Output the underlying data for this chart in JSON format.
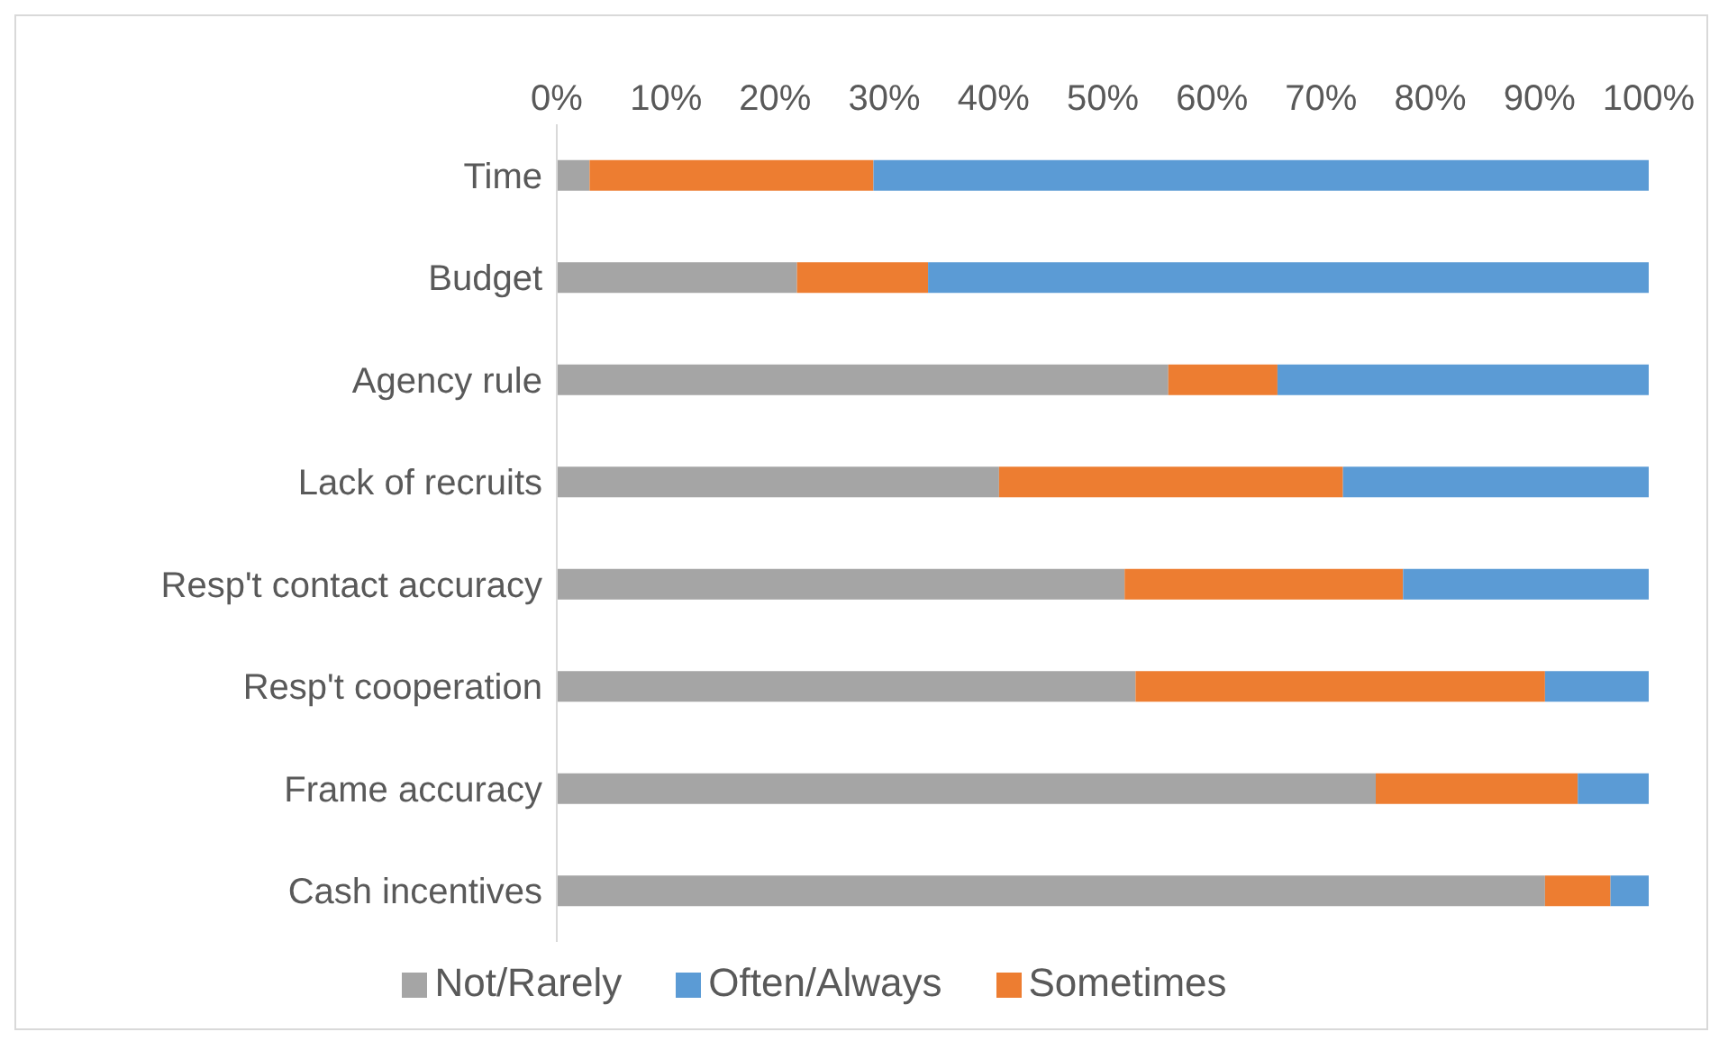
{
  "chart_data": {
    "type": "bar",
    "orientation": "horizontal",
    "stacked": true,
    "categories": [
      "Time",
      "Budget",
      "Agency rule",
      "Lack of recruits",
      "Resp't contact accuracy",
      "Resp't cooperation",
      "Frame accuracy",
      "Cash incentives"
    ],
    "series": [
      {
        "name": "Not/Rarely",
        "color": "#a5a5a5",
        "values": [
          3,
          22,
          56,
          40.5,
          52,
          53,
          75,
          90.5
        ]
      },
      {
        "name": "Sometimes",
        "color": "#ed7d31",
        "values": [
          26,
          12,
          10,
          31.5,
          25.5,
          37.5,
          18.5,
          6
        ]
      },
      {
        "name": "Often/Always",
        "color": "#5b9bd5",
        "values": [
          71,
          66,
          34,
          28,
          22.5,
          9.5,
          6.5,
          3.5
        ]
      }
    ],
    "xlim": [
      0,
      100
    ],
    "xticks": [
      {
        "value": 0,
        "label": "0%"
      },
      {
        "value": 10,
        "label": "10%"
      },
      {
        "value": 20,
        "label": "20%"
      },
      {
        "value": 30,
        "label": "30%"
      },
      {
        "value": 40,
        "label": "40%"
      },
      {
        "value": 50,
        "label": "50%"
      },
      {
        "value": 60,
        "label": "60%"
      },
      {
        "value": 70,
        "label": "70%"
      },
      {
        "value": 80,
        "label": "80%"
      },
      {
        "value": 90,
        "label": "90%"
      },
      {
        "value": 100,
        "label": "100%"
      }
    ],
    "legend": "bottom"
  }
}
